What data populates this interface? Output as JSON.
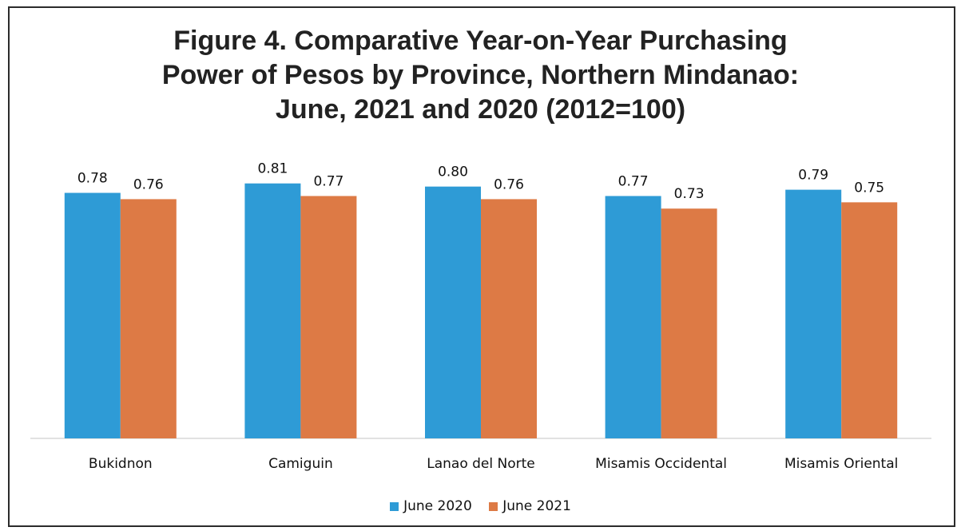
{
  "chart_data": {
    "type": "bar",
    "title_lines": [
      "Figure 4. Comparative Year-on-Year Purchasing",
      "Power of Pesos by Province, Northern Mindanao:",
      "June, 2021 and 2020 (2012=100)"
    ],
    "categories": [
      "Bukidnon",
      "Camiguin",
      "Lanao del Norte",
      "Misamis Occidental",
      "Misamis Oriental"
    ],
    "series": [
      {
        "name": "June 2020",
        "color": "#2e9bd6",
        "values": [
          0.78,
          0.81,
          0.8,
          0.77,
          0.79
        ],
        "labels": [
          "0.78",
          "0.81",
          "0.80",
          "0.77",
          "0.79"
        ]
      },
      {
        "name": "June 2021",
        "color": "#dd7a45",
        "values": [
          0.76,
          0.77,
          0.76,
          0.73,
          0.75
        ],
        "labels": [
          "0.76",
          "0.77",
          "0.76",
          "0.73",
          "0.75"
        ]
      }
    ],
    "ylim": [
      0,
      0.86
    ],
    "grid": false,
    "legend_position": "bottom"
  }
}
